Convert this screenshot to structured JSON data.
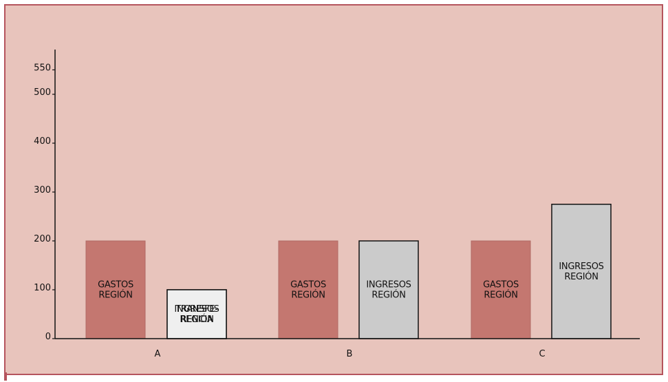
{
  "chart_data": {
    "type": "bar",
    "stacked": true,
    "categories": [
      "A",
      "B",
      "C"
    ],
    "ylim": [
      0,
      550
    ],
    "yticks": [
      0,
      100,
      200,
      300,
      400,
      500,
      550
    ],
    "grid": false,
    "colors": {
      "frame_background": "#e8c4bc",
      "frame_border": "#b5545d",
      "gastos": "#c47770",
      "ingresos": "#cbcbcb",
      "transferencia": "#efefef",
      "outline": "#111111"
    },
    "bars": [
      {
        "category": "A",
        "segments": [
          {
            "label": "GASTOS REGIÓN",
            "value": 200,
            "kind": "gastos"
          }
        ]
      },
      {
        "category": "A",
        "segments": [
          {
            "label": "INGRESOS REGIÓN",
            "value": 100,
            "kind": "ingresos"
          },
          {
            "label": "TRANSFE- RENCIA",
            "value": 100,
            "kind": "transferencia"
          }
        ]
      },
      {
        "category": "B",
        "segments": [
          {
            "label": "GASTOS REGIÓN",
            "value": 200,
            "kind": "gastos"
          }
        ]
      },
      {
        "category": "B",
        "segments": [
          {
            "label": "INGRESOS REGIÓN",
            "value": 200,
            "kind": "ingresos"
          }
        ]
      },
      {
        "category": "C",
        "segments": [
          {
            "label": "GASTOS REGIÓN",
            "value": 200,
            "kind": "gastos"
          }
        ]
      },
      {
        "category": "C",
        "segments": [
          {
            "label": "INGRESOS REGIÓN",
            "value": 275,
            "kind": "ingresos"
          }
        ]
      }
    ]
  }
}
